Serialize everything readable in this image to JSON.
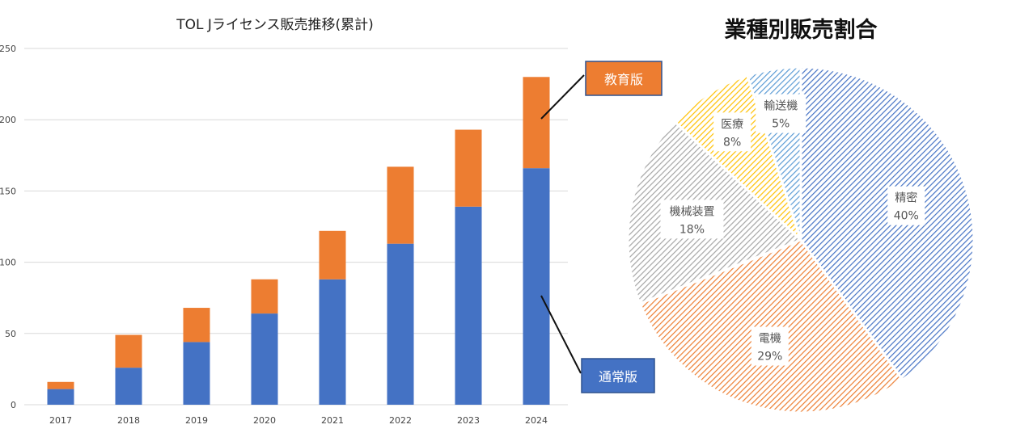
{
  "chart_data": [
    {
      "type": "bar",
      "stacked": true,
      "title": "TOL Jライセンス販売推移(累計)",
      "categories": [
        "2017",
        "2018",
        "2019",
        "2020",
        "2021",
        "2022",
        "2023",
        "2024"
      ],
      "series": [
        {
          "name": "通常版",
          "values": [
            11,
            26,
            44,
            64,
            88,
            113,
            139,
            166
          ],
          "color": "#4472c4"
        },
        {
          "name": "教育版",
          "values": [
            5,
            23,
            24,
            24,
            34,
            54,
            54,
            64
          ],
          "color": "#ed7d31"
        }
      ],
      "ylim": [
        0,
        250
      ],
      "yticks": [
        "0",
        "50",
        "100",
        "150",
        "200",
        "250"
      ],
      "grid": true,
      "legend": "callout-right"
    },
    {
      "type": "pie",
      "title": "業種別販売割合",
      "slices": [
        {
          "label": "精密",
          "percent_label": "40%",
          "value": 40,
          "color": "#4472c4"
        },
        {
          "label": "電機",
          "percent_label": "29%",
          "value": 29,
          "color": "#ed7d31"
        },
        {
          "label": "機械装置",
          "percent_label": "18%",
          "value": 18,
          "color": "#a5a5a5"
        },
        {
          "label": "医療",
          "percent_label": "8%",
          "value": 8,
          "color": "#ffc000"
        },
        {
          "label": "輸送機",
          "percent_label": "5%",
          "value": 5,
          "color": "#5b9bd5"
        }
      ],
      "fill_pattern": "diagonal-hatch"
    }
  ]
}
